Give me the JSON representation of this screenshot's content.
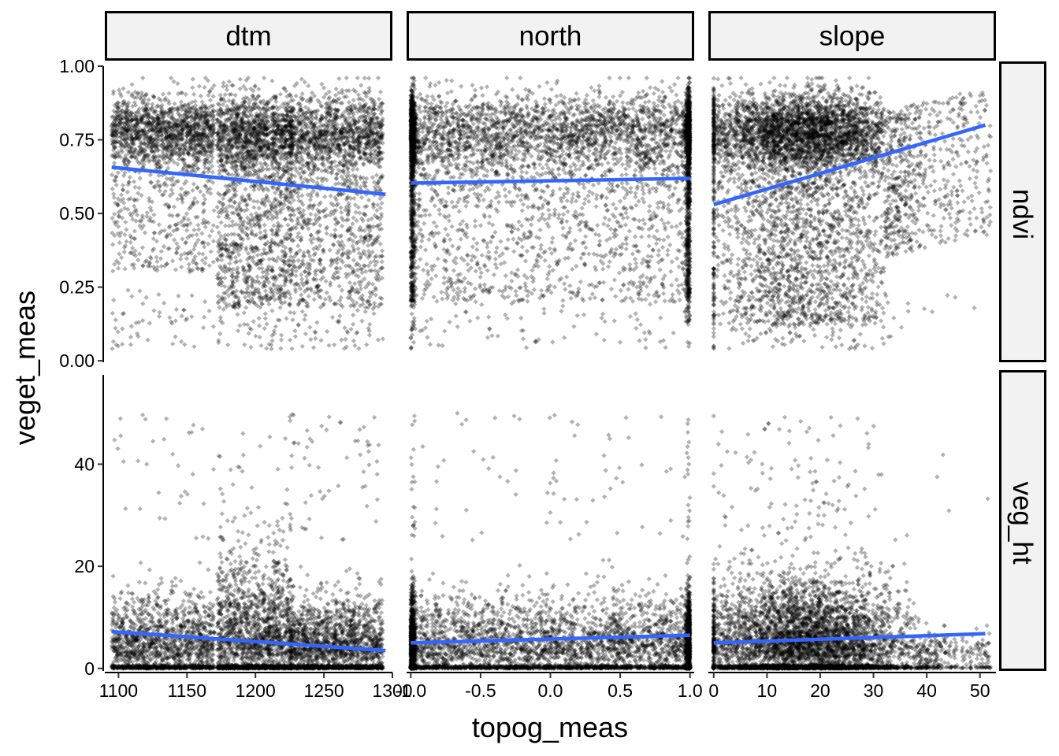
{
  "chart_data": {
    "type": "scatter",
    "title": "",
    "xlabel": "topog_meas",
    "ylabel": "veget_meas",
    "facets": {
      "columns": [
        "dtm",
        "north",
        "slope"
      ],
      "rows": [
        "ndvi",
        "veg_ht"
      ]
    },
    "x_axes": [
      {
        "facet": "dtm",
        "range": [
          1090,
          1300
        ],
        "ticks": [
          1100,
          1150,
          1200,
          1250,
          1300
        ],
        "tick_labels": [
          "1100",
          "1150",
          "1200",
          "1250",
          "1300"
        ]
      },
      {
        "facet": "north",
        "range": [
          -1.03,
          1.03
        ],
        "ticks": [
          -1.0,
          -0.5,
          0.0,
          0.5,
          1.0
        ],
        "tick_labels": [
          "-1.0",
          "-0.5",
          "0.0",
          "0.5",
          "1.0"
        ]
      },
      {
        "facet": "slope",
        "range": [
          -1,
          53
        ],
        "ticks": [
          0,
          10,
          20,
          30,
          40,
          50
        ],
        "tick_labels": [
          "0",
          "10",
          "20",
          "30",
          "40",
          "50"
        ]
      }
    ],
    "y_axes": [
      {
        "facet": "ndvi",
        "range": [
          -0.005,
          1.0
        ],
        "ticks": [
          0.0,
          0.25,
          0.5,
          0.75,
          1.0
        ],
        "tick_labels": [
          "0.00",
          "0.25",
          "0.50",
          "0.75",
          "1.00"
        ]
      },
      {
        "facet": "veg_ht",
        "range": [
          -0.5,
          57.5
        ],
        "ticks": [
          0,
          20,
          40
        ],
        "tick_labels": [
          "0",
          "20",
          "40"
        ]
      }
    ],
    "points": {
      "color": "#000000",
      "alpha": 0.3,
      "approx_count_per_panel": 5500
    },
    "trend_lines": {
      "color": "#3366FF",
      "method": "linear",
      "series": [
        {
          "row": "ndvi",
          "col": "dtm",
          "x": [
            1095,
            1295
          ],
          "y": [
            0.657,
            0.565
          ]
        },
        {
          "row": "ndvi",
          "col": "north",
          "x": [
            -1.0,
            1.0
          ],
          "y": [
            0.603,
            0.619
          ]
        },
        {
          "row": "ndvi",
          "col": "slope",
          "x": [
            0,
            51
          ],
          "y": [
            0.53,
            0.8
          ]
        },
        {
          "row": "veg_ht",
          "col": "dtm",
          "x": [
            1095,
            1295
          ],
          "y": [
            7.2,
            3.5
          ]
        },
        {
          "row": "veg_ht",
          "col": "north",
          "x": [
            -1.0,
            1.0
          ],
          "y": [
            5.0,
            6.5
          ]
        },
        {
          "row": "veg_ht",
          "col": "slope",
          "x": [
            0,
            51
          ],
          "y": [
            5.0,
            6.8
          ]
        }
      ]
    },
    "grid": false,
    "legend": "none",
    "facet_strip_fill": "#f2f2f2"
  }
}
